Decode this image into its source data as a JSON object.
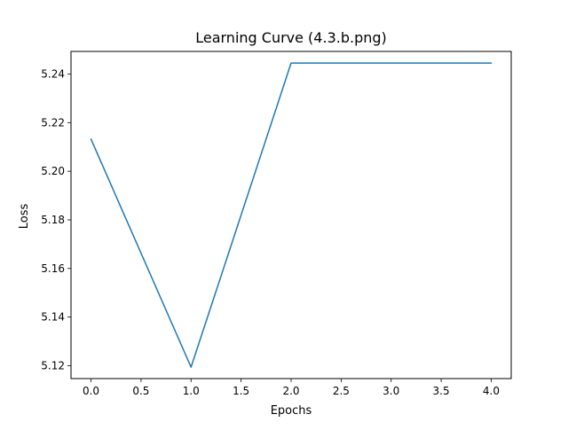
{
  "chart_data": {
    "type": "line",
    "title": "Learning Curve (4.3.b.png)",
    "xlabel": "Epochs",
    "ylabel": "Loss",
    "x_ticks": [
      0.0,
      0.5,
      1.0,
      1.5,
      2.0,
      2.5,
      3.0,
      3.5,
      4.0
    ],
    "x_tick_labels": [
      "0.0",
      "0.5",
      "1.0",
      "1.5",
      "2.0",
      "2.5",
      "3.0",
      "3.5",
      "4.0"
    ],
    "y_ticks": [
      5.12,
      5.14,
      5.16,
      5.18,
      5.2,
      5.22,
      5.24
    ],
    "y_tick_labels": [
      "5.12",
      "5.14",
      "5.16",
      "5.18",
      "5.20",
      "5.22",
      "5.24"
    ],
    "xlim": [
      -0.2,
      4.2
    ],
    "ylim": [
      5.1147,
      5.2493
    ],
    "grid": false,
    "series": [
      {
        "x": [
          0,
          1,
          2,
          3,
          4
        ],
        "values": [
          5.2132,
          5.1194,
          5.2445,
          5.2445,
          5.2445
        ],
        "color": "#1f77b4"
      }
    ]
  }
}
